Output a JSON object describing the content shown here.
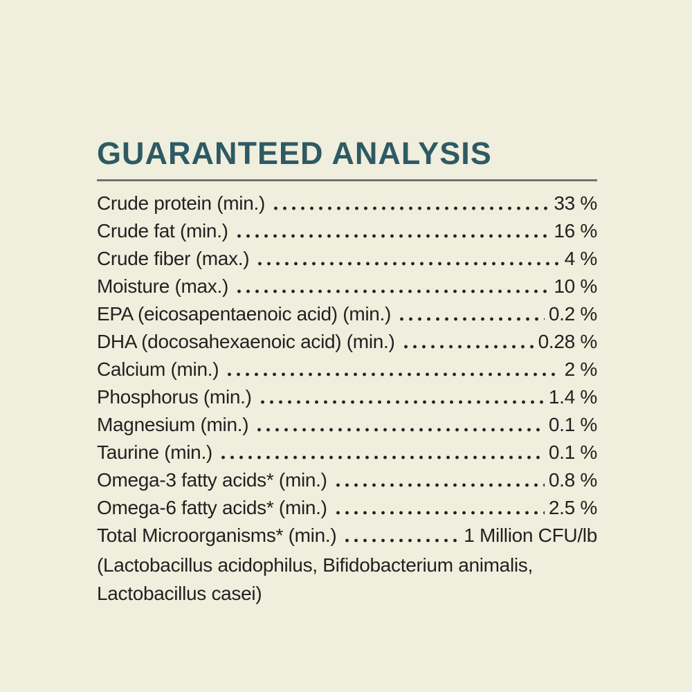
{
  "colors": {
    "background": "#f0eedd",
    "title": "#2d5a64",
    "text": "#212121",
    "rule": "#707070"
  },
  "title": "GUARANTEED ANALYSIS",
  "rows": [
    {
      "label": "Crude protein (min.)",
      "value": "33 %"
    },
    {
      "label": "Crude fat (min.)",
      "value": "16 %"
    },
    {
      "label": "Crude fiber (max.)",
      "value": "4 %"
    },
    {
      "label": "Moisture (max.)",
      "value": "10 %"
    },
    {
      "label": "EPA (eicosapentaenoic acid) (min.)",
      "value": "0.2 %"
    },
    {
      "label": "DHA (docosahexaenoic acid) (min.)",
      "value": "0.28 %"
    },
    {
      "label": "Calcium (min.)",
      "value": "2 %"
    },
    {
      "label": "Phosphorus (min.)",
      "value": "1.4 %"
    },
    {
      "label": "Magnesium (min.)",
      "value": "0.1 %"
    },
    {
      "label": "Taurine (min.)",
      "value": "0.1 %"
    },
    {
      "label": "Omega-3 fatty acids* (min.)",
      "value": "0.8 %"
    },
    {
      "label": "Omega-6 fatty acids* (min.)",
      "value": "2.5 %"
    },
    {
      "label": "Total Microorganisms* (min.)",
      "value": "1 Million CFU/lb"
    }
  ],
  "footnote_lines": [
    "(Lactobacillus acidophilus, Bifidobacterium animalis,",
    "Lactobacillus casei)"
  ]
}
